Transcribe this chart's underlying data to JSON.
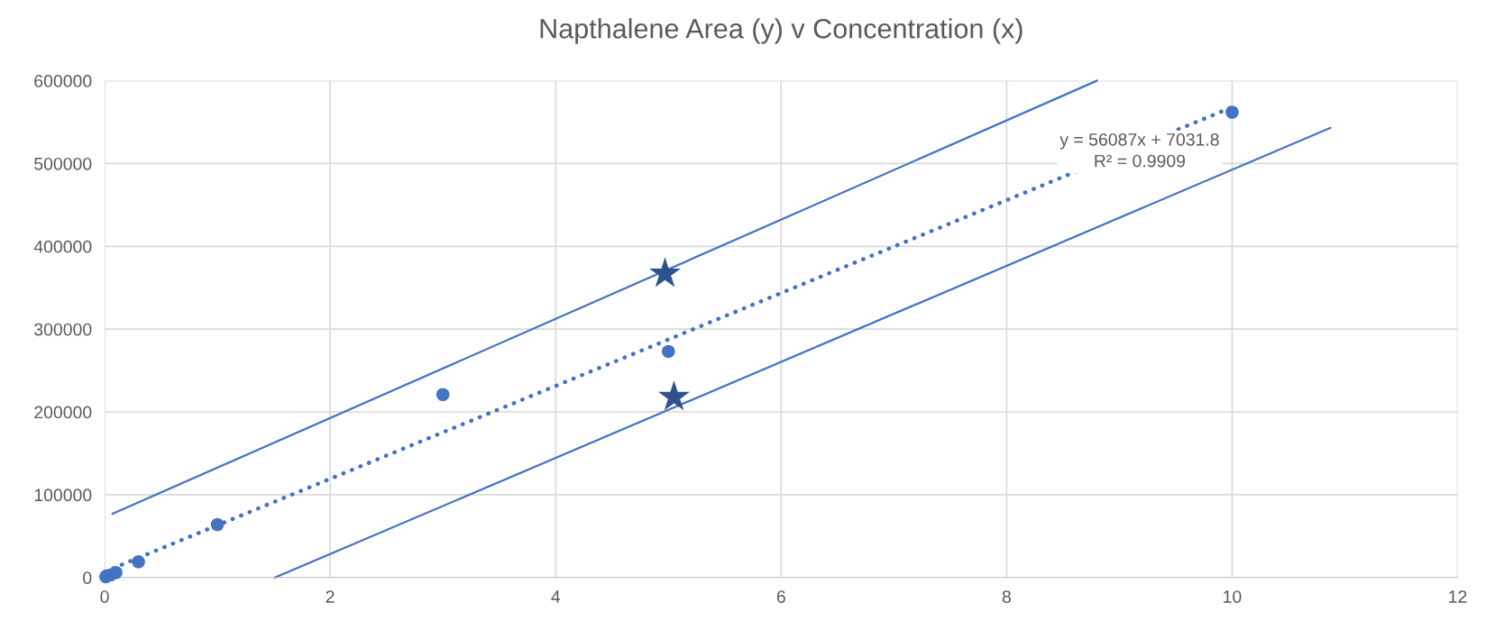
{
  "chart_data": {
    "type": "scatter",
    "title": "Napthalene Area (y) v Concentration (x)",
    "xlim": [
      0,
      12
    ],
    "xticks": [
      0,
      2,
      4,
      6,
      8,
      10,
      12
    ],
    "ylim": [
      0,
      600000
    ],
    "yticks": [
      0,
      100000,
      200000,
      300000,
      400000,
      500000,
      600000
    ],
    "grid": true,
    "legend": false,
    "series": [
      {
        "type": "line",
        "color": "#4472c4",
        "line_style": "dotted",
        "marker": "none",
        "x": [
          0,
          10
        ],
        "values": [
          7000,
          568000
        ]
      },
      {
        "type": "line",
        "color": "#4472c4",
        "line_style": "solid",
        "marker": "none",
        "x": [
          0.07,
          8.8
        ],
        "values": [
          77000,
          600000
        ]
      },
      {
        "type": "line",
        "color": "#4472c4",
        "line_style": "solid",
        "marker": "none",
        "x": [
          1.51,
          10.87
        ],
        "values": [
          0,
          543000
        ]
      },
      {
        "color": "#4472c4",
        "marker": "circle",
        "x": [
          0.01,
          0.05,
          0.1,
          0.3,
          1,
          3,
          5,
          10
        ],
        "values": [
          1000,
          3000,
          6000,
          19000,
          64000,
          221000,
          273000,
          562000
        ]
      },
      {
        "color": "#2f528f",
        "marker": "star",
        "x": [
          4.97,
          5.05
        ],
        "values": [
          367000,
          218000
        ]
      }
    ],
    "annotations": [
      "y = 56087x + 7031.8\nR² = 0.9909"
    ]
  }
}
